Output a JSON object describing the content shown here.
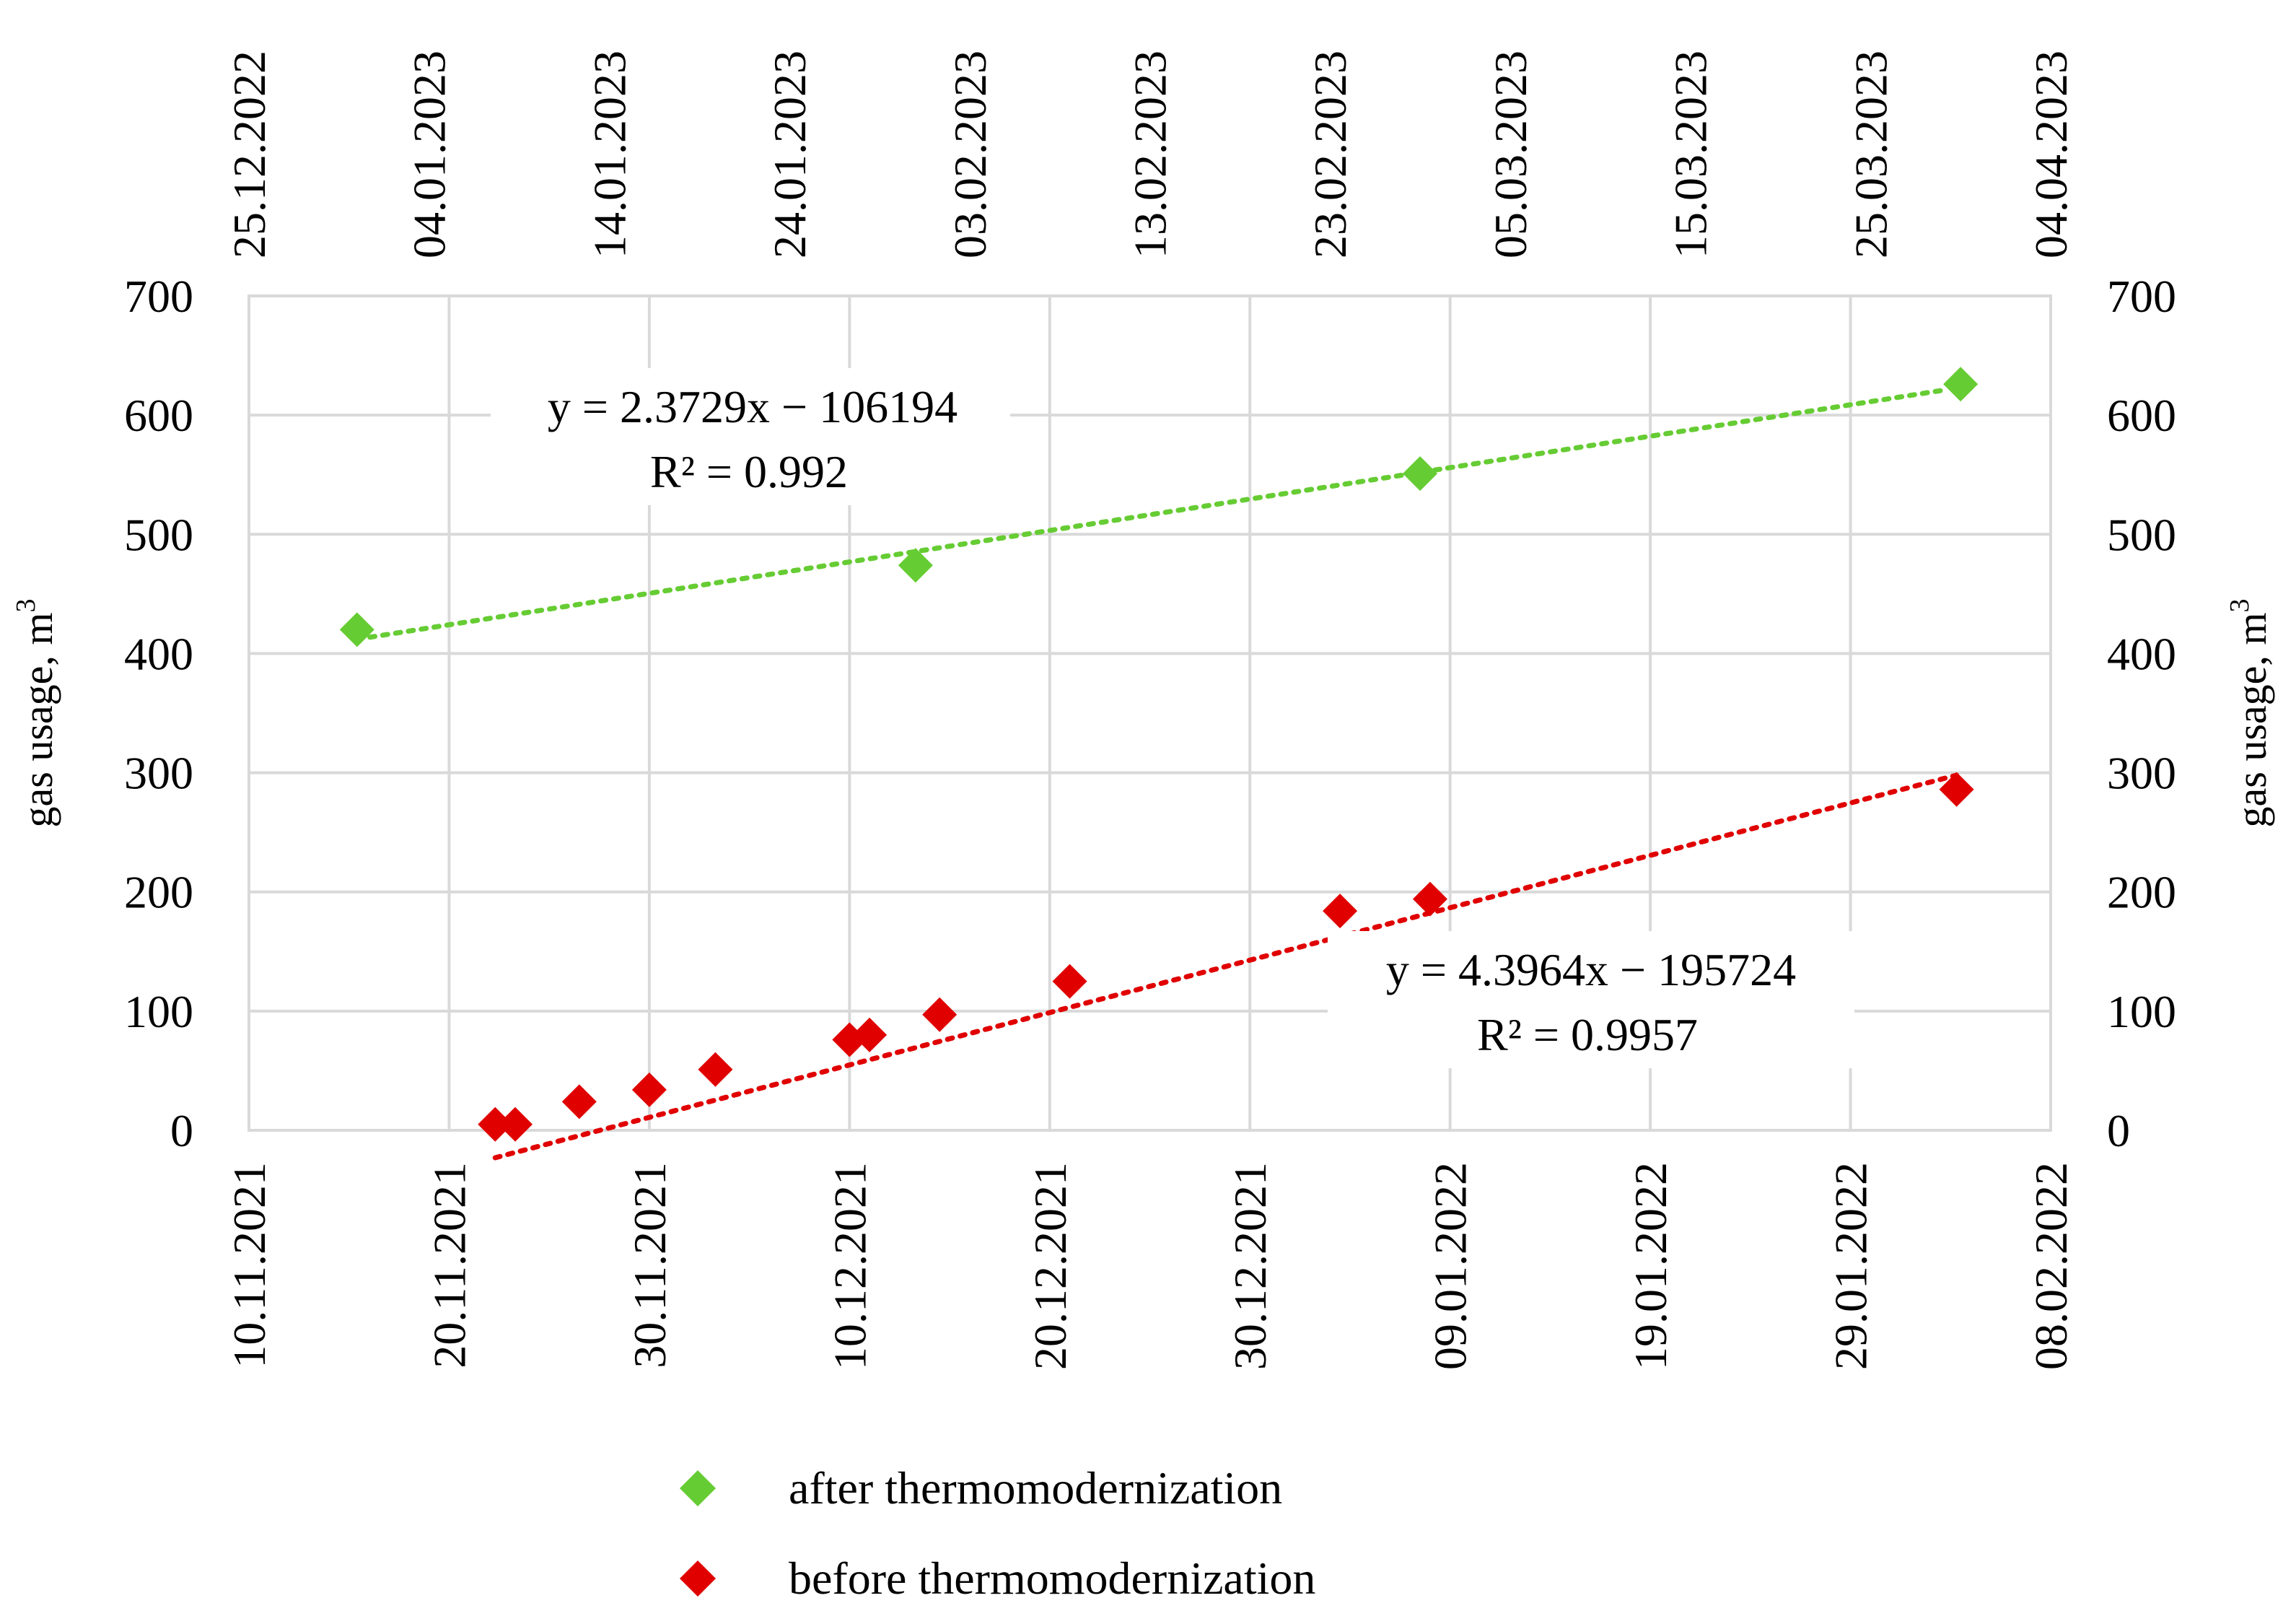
{
  "chart_data": {
    "type": "scatter",
    "y_axis": {
      "label": "gas usage,  m",
      "label_sup": "3",
      "range": [
        0,
        700
      ],
      "step": 100
    },
    "bottom_axis": {
      "start": "2021-11-10",
      "range_days": [
        0,
        90
      ],
      "ticks": [
        "10.11.2021",
        "20.11.2021",
        "30.11.2021",
        "10.12.2021",
        "20.12.2021",
        "30.12.2021",
        "09.01.2022",
        "19.01.2022",
        "29.01.2022",
        "08.02.2022"
      ]
    },
    "top_axis": {
      "start": "2022-12-25",
      "range_days": [
        0,
        100
      ],
      "ticks": [
        "25.12.2022",
        "04.01.2023",
        "14.01.2023",
        "24.01.2023",
        "03.02.2023",
        "13.02.2023",
        "23.02.2023",
        "05.03.2023",
        "15.03.2023",
        "25.03.2023",
        "04.04.2023"
      ]
    },
    "grid": true,
    "series": [
      {
        "name": "after thermomodernization",
        "axis": "top",
        "color": "#66cc33",
        "points": [
          {
            "day": 6,
            "y": 420
          },
          {
            "day": 37,
            "y": 474
          },
          {
            "day": 65,
            "y": 551
          },
          {
            "day": 95,
            "y": 626
          }
        ],
        "trend": {
          "from_day": 6,
          "to_day": 94,
          "slope_per_day": 2.3729,
          "y_start": 412
        },
        "equation": "y = 2.3729x − 106194",
        "r2": "R² = 0.992"
      },
      {
        "name": "before thermomodernization",
        "axis": "bottom",
        "color": "#e00000",
        "points": [
          {
            "day": 12.3,
            "y": 5
          },
          {
            "day": 13.3,
            "y": 5
          },
          {
            "day": 16.5,
            "y": 24
          },
          {
            "day": 20,
            "y": 34
          },
          {
            "day": 23.3,
            "y": 51
          },
          {
            "day": 30,
            "y": 76
          },
          {
            "day": 31,
            "y": 80
          },
          {
            "day": 34.5,
            "y": 97
          },
          {
            "day": 41,
            "y": 125
          },
          {
            "day": 54.5,
            "y": 184
          },
          {
            "day": 59,
            "y": 194
          },
          {
            "day": 85.3,
            "y": 286
          }
        ],
        "trend": {
          "from_day": 12.3,
          "to_day": 85.3,
          "slope_per_day": 4.3964,
          "y_start": -23
        },
        "equation": "y = 4.3964x − 195724",
        "r2": "R² = 0.9957"
      }
    ],
    "legend": [
      {
        "label": "after thermomodernization",
        "color": "#66cc33"
      },
      {
        "label": "before thermomodernization",
        "color": "#e00000"
      }
    ]
  }
}
